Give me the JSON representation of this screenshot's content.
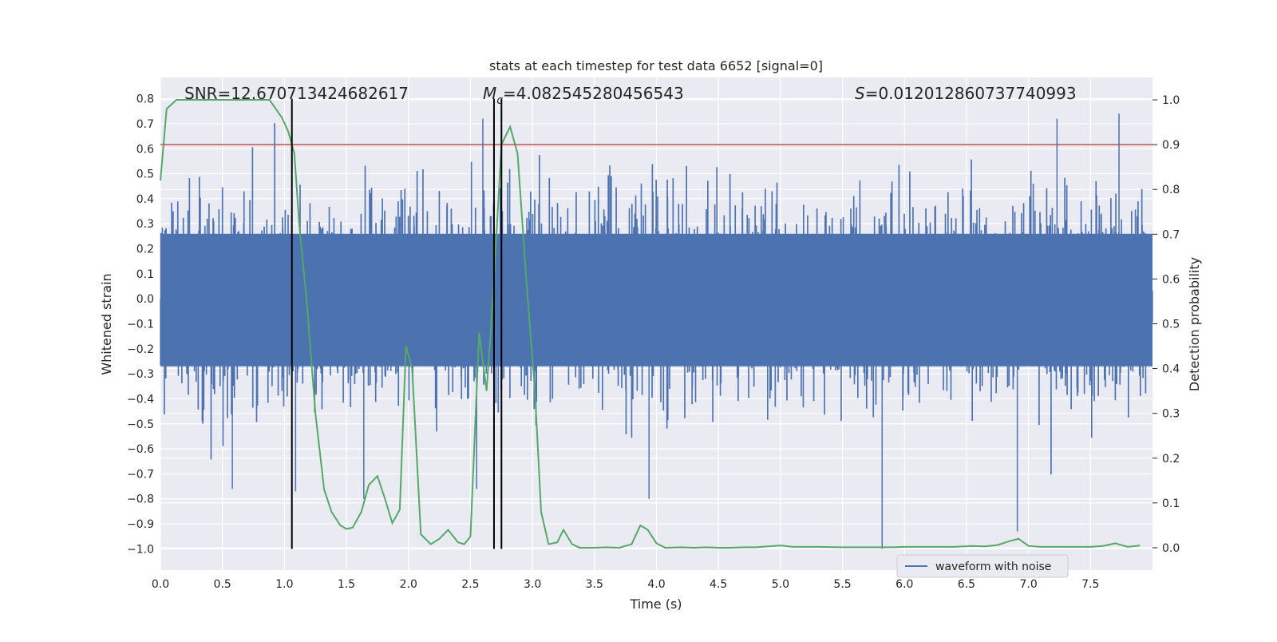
{
  "chart_data": {
    "type": "line",
    "title": "stats at each timestep for test data 6652 [signal=0]",
    "xlabel": "Time (s)",
    "ylabel_left": "Whitened strain",
    "ylabel_right": "Detection probability",
    "xlim": [
      0.0,
      8.0
    ],
    "ylim_left": [
      -1.085,
      0.885
    ],
    "ylim_right": [
      -0.05,
      1.05
    ],
    "x_ticks": [
      "0.0",
      "0.5",
      "1.0",
      "1.5",
      "2.0",
      "2.5",
      "3.0",
      "3.5",
      "4.0",
      "4.5",
      "5.0",
      "5.5",
      "6.0",
      "6.5",
      "7.0",
      "7.5"
    ],
    "x_tick_values": [
      0.0,
      0.5,
      1.0,
      1.5,
      2.0,
      2.5,
      3.0,
      3.5,
      4.0,
      4.5,
      5.0,
      5.5,
      6.0,
      6.5,
      7.0,
      7.5
    ],
    "y_left_ticks": [
      "0.8",
      "0.7",
      "0.6",
      "0.5",
      "0.4",
      "0.3",
      "0.2",
      "0.1",
      "0.0",
      "−0.1",
      "−0.2",
      "−0.3",
      "−0.4",
      "−0.5",
      "−0.6",
      "−0.7",
      "−0.8",
      "−0.9",
      "−1.0"
    ],
    "y_left_tick_values": [
      0.8,
      0.7,
      0.6,
      0.5,
      0.4,
      0.3,
      0.2,
      0.1,
      0.0,
      -0.1,
      -0.2,
      -0.3,
      -0.4,
      -0.5,
      -0.6,
      -0.7,
      -0.8,
      -0.9,
      -1.0
    ],
    "y_right_ticks": [
      "1.0",
      "0.9",
      "0.8",
      "0.7",
      "0.6",
      "0.5",
      "0.4",
      "0.3",
      "0.2",
      "0.1",
      "0.0"
    ],
    "y_right_tick_values": [
      1.0,
      0.9,
      0.8,
      0.7,
      0.6,
      0.5,
      0.4,
      0.3,
      0.2,
      0.1,
      0.0
    ],
    "grid": true,
    "legend": {
      "position": "lower-right",
      "entries": [
        {
          "label": "waveform with noise",
          "color": "#4c72b0"
        }
      ]
    },
    "annotations": {
      "snr_text": "SNR=12.670713424682617",
      "mc_symbol": "M",
      "mc_sub": "c",
      "mc_value": "=4.082545280456543",
      "s_symbol": "S",
      "s_value": "=0.012012860737740993"
    },
    "threshold_line": {
      "y_right": 0.9,
      "color": "#c44e52"
    },
    "vertical_lines": {
      "x": [
        1.06,
        2.69,
        2.75
      ],
      "y_left_range": [
        -1.0,
        0.8
      ],
      "color": "#000000"
    },
    "waveform": {
      "name": "waveform with noise",
      "color": "#4c72b0",
      "x_range": [
        0.0,
        8.0
      ],
      "envelope_abs": 0.36,
      "peaks": [
        {
          "x": 0.58,
          "y": -0.76
        },
        {
          "x": 1.09,
          "y": -0.77
        },
        {
          "x": 1.64,
          "y": -0.8
        },
        {
          "x": 2.55,
          "y": -0.76
        },
        {
          "x": 2.6,
          "y": 0.72
        },
        {
          "x": 3.94,
          "y": -0.8
        },
        {
          "x": 5.82,
          "y": -1.0
        },
        {
          "x": 6.91,
          "y": -0.93
        },
        {
          "x": 7.23,
          "y": 0.72
        },
        {
          "x": 7.73,
          "y": 0.74
        }
      ]
    },
    "detection_probability": {
      "color": "#55a868",
      "x": [
        0.0,
        0.05,
        0.13,
        0.25,
        0.38,
        0.5,
        0.63,
        0.75,
        0.88,
        0.93,
        0.98,
        1.03,
        1.08,
        1.12,
        1.18,
        1.25,
        1.32,
        1.38,
        1.45,
        1.5,
        1.55,
        1.62,
        1.68,
        1.75,
        1.81,
        1.87,
        1.93,
        1.98,
        2.03,
        2.1,
        2.18,
        2.25,
        2.32,
        2.4,
        2.45,
        2.5,
        2.57,
        2.63,
        2.68,
        2.75,
        2.82,
        2.88,
        2.95,
        3.02,
        3.07,
        3.13,
        3.2,
        3.25,
        3.32,
        3.38,
        3.5,
        3.6,
        3.7,
        3.8,
        3.87,
        3.93,
        4.0,
        4.07,
        4.2,
        4.3,
        4.4,
        4.5,
        4.6,
        4.7,
        4.8,
        5.0,
        5.1,
        5.3,
        5.5,
        5.7,
        5.9,
        6.0,
        6.2,
        6.4,
        6.55,
        6.65,
        6.75,
        6.85,
        6.92,
        7.0,
        7.1,
        7.3,
        7.5,
        7.6,
        7.7,
        7.8,
        7.9
      ],
      "y": [
        0.82,
        0.98,
        1.0,
        1.0,
        1.0,
        1.0,
        1.0,
        1.0,
        1.0,
        0.98,
        0.96,
        0.93,
        0.88,
        0.72,
        0.55,
        0.3,
        0.13,
        0.08,
        0.05,
        0.042,
        0.045,
        0.08,
        0.14,
        0.16,
        0.11,
        0.055,
        0.085,
        0.45,
        0.4,
        0.03,
        0.008,
        0.02,
        0.04,
        0.012,
        0.008,
        0.025,
        0.48,
        0.35,
        0.55,
        0.9,
        0.94,
        0.88,
        0.6,
        0.35,
        0.08,
        0.008,
        0.012,
        0.04,
        0.008,
        0.0,
        0.0,
        0.001,
        0.0,
        0.008,
        0.05,
        0.04,
        0.01,
        0.0,
        0.001,
        0.0,
        0.001,
        0.0,
        0.0,
        0.001,
        0.001,
        0.005,
        0.002,
        0.002,
        0.001,
        0.001,
        0.001,
        0.002,
        0.002,
        0.002,
        0.004,
        0.003,
        0.006,
        0.015,
        0.02,
        0.004,
        0.002,
        0.002,
        0.002,
        0.004,
        0.01,
        0.002,
        0.005
      ]
    }
  }
}
